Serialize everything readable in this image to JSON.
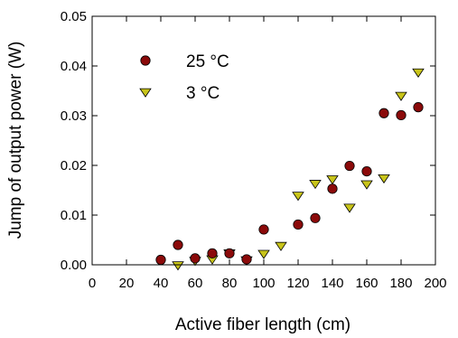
{
  "chart_data": {
    "type": "scatter",
    "xlabel": "Active fiber length (cm)",
    "ylabel": "Jump of output power (W)",
    "xlim": [
      0,
      200
    ],
    "ylim": [
      0,
      0.05
    ],
    "xticks": [
      "0",
      "20",
      "40",
      "60",
      "80",
      "100",
      "120",
      "140",
      "160",
      "180",
      "200"
    ],
    "yticks": [
      "0.00",
      "0.01",
      "0.02",
      "0.03",
      "0.04",
      "0.05"
    ],
    "grid": false,
    "legend_position": "top-left",
    "series": [
      {
        "name": "25 °C",
        "marker": "circle",
        "color": "#8b0a0a",
        "x": [
          40,
          50,
          60,
          70,
          80,
          90,
          100,
          120,
          130,
          140,
          150,
          160,
          170,
          180,
          190
        ],
        "y": [
          0.001,
          0.004,
          0.0013,
          0.0023,
          0.0023,
          0.0011,
          0.0071,
          0.0081,
          0.0094,
          0.0153,
          0.0199,
          0.0188,
          0.0305,
          0.0301,
          0.0317
        ]
      },
      {
        "name": "3 °C",
        "marker": "triangle-down",
        "color": "#c8c41a",
        "x": [
          50,
          60,
          70,
          80,
          90,
          100,
          110,
          120,
          130,
          140,
          150,
          160,
          170,
          180,
          190
        ],
        "y": [
          -0.0001,
          0.0008,
          0.0011,
          0.0023,
          0.0009,
          0.0022,
          0.0038,
          0.0139,
          0.0163,
          0.0172,
          0.0115,
          0.0162,
          0.0174,
          0.034,
          0.0387
        ]
      }
    ]
  }
}
